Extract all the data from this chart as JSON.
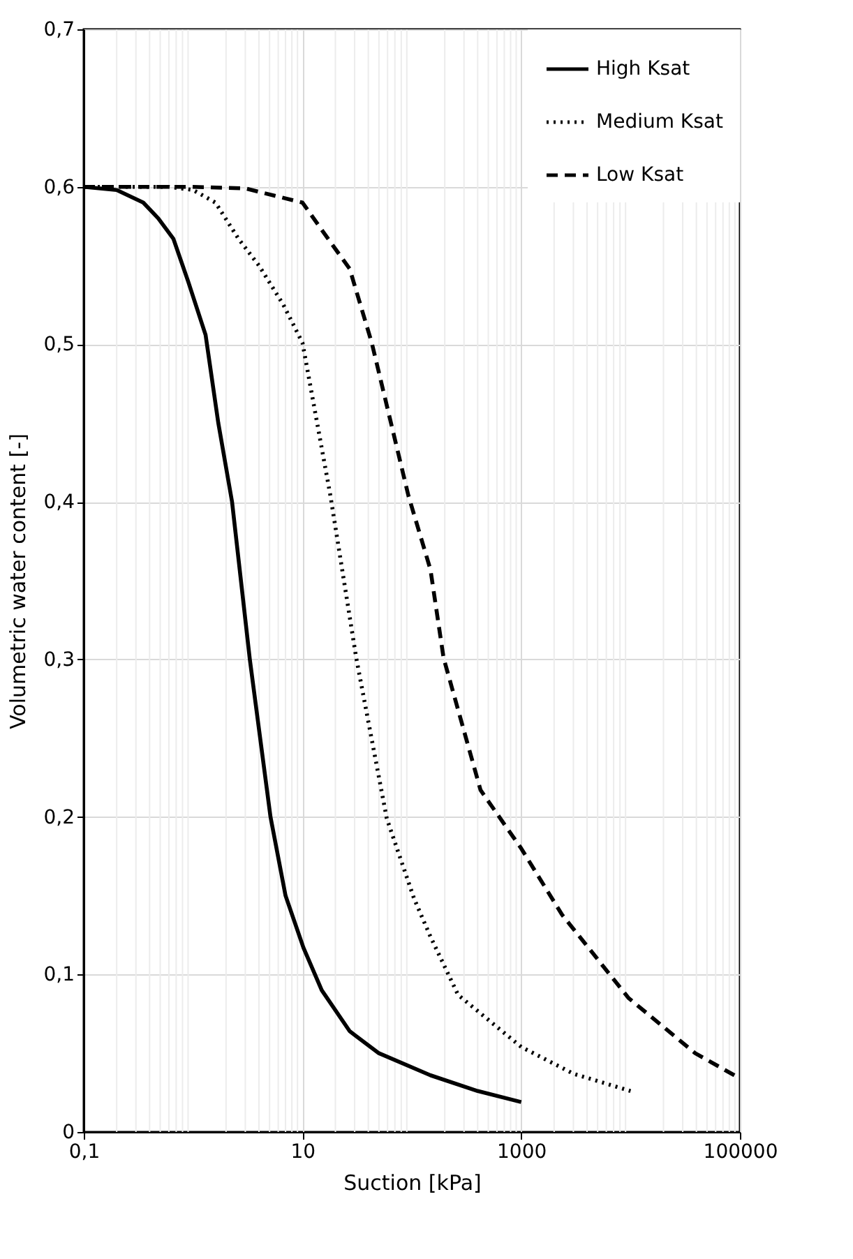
{
  "chart_data": {
    "type": "line",
    "xlabel": "Suction [kPa]",
    "ylabel": "Volumetric water content [-]",
    "log": "x",
    "grid": true,
    "legend": "top right",
    "marker": "none",
    "xlim": [
      0.1,
      100000
    ],
    "xticks": [
      {
        "value": 0.1,
        "label": "0,1"
      },
      10,
      1000,
      100000
    ],
    "ylim": [
      0,
      0.7
    ],
    "yticks": [
      {
        "value": 0,
        "label": "0"
      },
      {
        "value": 0.1,
        "label": "0,1"
      },
      {
        "value": 0.2,
        "label": "0,2"
      },
      {
        "value": 0.3,
        "label": "0,3"
      },
      {
        "value": 0.4,
        "label": "0,4"
      },
      {
        "value": 0.5,
        "label": "0,5"
      },
      {
        "value": 0.6,
        "label": "0,6"
      },
      {
        "value": 0.7,
        "label": "0,7"
      }
    ],
    "series": [
      {
        "name": "High Ksat",
        "color": "#000000",
        "line_style": "solid",
        "x": [
          0.1,
          0.2,
          0.35,
          0.48,
          0.66,
          0.9,
          1.3,
          1.7,
          2.27,
          3.3,
          5.1,
          7,
          10.2,
          15,
          27,
          50,
          148,
          400,
          1000
        ],
        "values": [
          0.6,
          0.598,
          0.59,
          0.58,
          0.567,
          0.54,
          0.506,
          0.45,
          0.4,
          0.3,
          0.2,
          0.15,
          0.117,
          0.09,
          0.064,
          0.05,
          0.036,
          0.026,
          0.019
        ]
      },
      {
        "name": "Medium Ksat",
        "color": "#000000",
        "line_style": "dotted",
        "x": [
          0.1,
          0.3,
          0.6,
          1,
          1.6,
          2.6,
          4,
          6.7,
          10,
          18,
          31,
          59,
          105,
          148,
          265,
          1000,
          3000,
          10000
        ],
        "values": [
          0.6,
          0.6,
          0.6,
          0.598,
          0.59,
          0.567,
          0.55,
          0.525,
          0.501,
          0.404,
          0.301,
          0.199,
          0.148,
          0.124,
          0.087,
          0.054,
          0.037,
          0.026
        ]
      },
      {
        "name": "Low Ksat",
        "color": "#000000",
        "line_style": "dashed",
        "x": [
          0.1,
          1,
          3,
          10,
          15.6,
          27,
          43,
          93,
          148,
          195,
          425,
          1000,
          2360,
          9600,
          39000,
          100000
        ],
        "values": [
          0.6,
          0.6,
          0.599,
          0.59,
          0.571,
          0.548,
          0.501,
          0.404,
          0.357,
          0.301,
          0.217,
          0.18,
          0.138,
          0.085,
          0.05,
          0.034
        ]
      }
    ]
  }
}
